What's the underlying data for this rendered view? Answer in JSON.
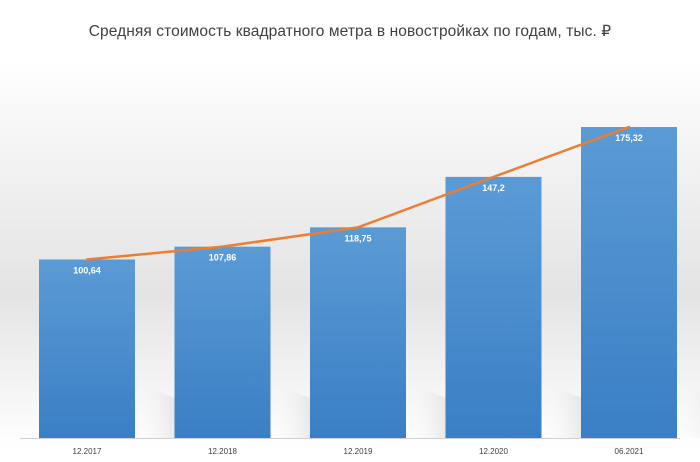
{
  "title": "Средняя стоимость квадратного метра в новостройках по годам, тыс. ₽",
  "colors": {
    "bar_top": "#5B9BD5",
    "bar_bottom": "#3A7FC5",
    "line": "#ED7D31",
    "axis": "#D0D0D0",
    "label_text": "#FFFFFF",
    "tick_text": "#404040"
  },
  "chart_data": {
    "type": "bar",
    "title": "Средняя стоимость квадратного метра в новостройках по годам, тыс. ₽",
    "categories": [
      "12.2017",
      "12.2018",
      "12.2019",
      "12.2020",
      "06.2021"
    ],
    "values": [
      100.64,
      107.86,
      118.75,
      147.2,
      175.32
    ],
    "data_labels": [
      "100,64",
      "107,86",
      "118,75",
      "147,2",
      "175,32"
    ],
    "overlay_line": true,
    "xlabel": "",
    "ylabel": "",
    "ylim": [
      0,
      175.32
    ],
    "grid": false,
    "legend": "none"
  }
}
